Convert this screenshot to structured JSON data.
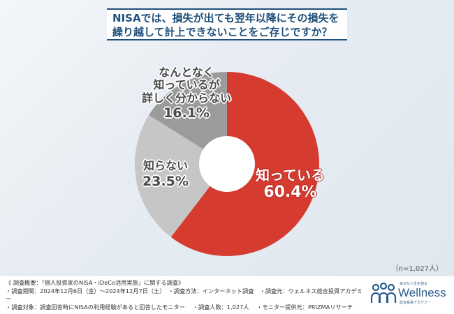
{
  "title": {
    "line1": "NISAでは、損失が出ても翌年以降にその損失を",
    "line2": "繰り越して計上できないことをご存じですか？"
  },
  "chart_data": {
    "type": "pie",
    "donut": true,
    "categories": [
      "知っている",
      "知らない",
      "なんとなく知っているが詳しく分からない"
    ],
    "values": [
      60.4,
      23.5,
      16.1
    ],
    "unit": "%",
    "colors": [
      "#d63b30",
      "#c6c6c6",
      "#9b9b9b"
    ],
    "labels": [
      {
        "lines": [
          "知っている"
        ],
        "value": "60.4%"
      },
      {
        "lines": [
          "知らない"
        ],
        "value": "23.5%"
      },
      {
        "lines": [
          "なんとなく",
          "知っているが",
          "詳しく分からない"
        ],
        "value": "16.1%"
      }
    ],
    "sample_note": "（n=1,027人）"
  },
  "footer": {
    "notes": [
      "《 調査概要：「個人投資家のNISA・iDeCo活用実態」に関する調査》",
      "・調査期間：2024年12月6日（金）～2024年12月7日（土）　・調査方法：インターネット調査　・調査元：ウェルネス総合投資アカデミー",
      "・調査対象：調査回答時にNISAの利用経験があると回答したモニター　 ・調査人数：1,027人　 ・モニター提供元：PRIZMAリサーチ"
    ],
    "logo": {
      "tagline": "幸せな人生を創る",
      "name": "Wellness",
      "sub": "総合投資アカデミー"
    }
  }
}
